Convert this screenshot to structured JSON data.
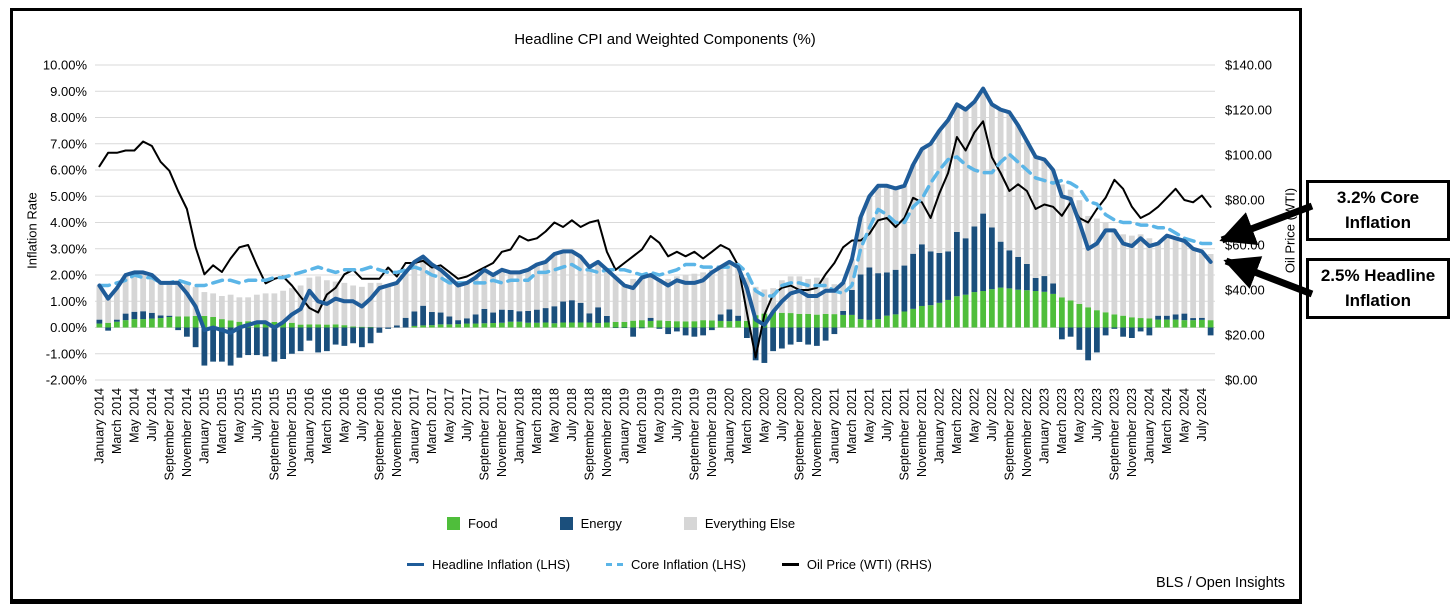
{
  "title": "Headline CPI and Weighted Components (%)",
  "left_axis": {
    "title": "Inflation Rate",
    "ticks": [
      "10.00%",
      "9.00%",
      "8.00%",
      "7.00%",
      "6.00%",
      "5.00%",
      "4.00%",
      "3.00%",
      "2.00%",
      "1.00%",
      "0.00%",
      "-1.00%",
      "-2.00%"
    ]
  },
  "right_axis": {
    "title": "Oil Price (WTI)",
    "ticks": [
      "$140.00",
      "$120.00",
      "$100.00",
      "$80.00",
      "$60.00",
      "$40.00",
      "$20.00",
      "$0.00"
    ]
  },
  "legend": {
    "bars": [
      {
        "label": "Food",
        "color": "#4fbe3b"
      },
      {
        "label": "Energy",
        "color": "#1b4f7c"
      },
      {
        "label": "Everything Else",
        "color": "#d6d6d6"
      }
    ],
    "lines": [
      {
        "label": "Headline Inflation (LHS)",
        "color": "#1f5c99",
        "dashed": false
      },
      {
        "label": "Core Inflation (LHS)",
        "color": "#5bb5e7",
        "dashed": true
      },
      {
        "label": "Oil Price (WTI) (RHS)",
        "color": "#000000",
        "dashed": false
      }
    ]
  },
  "callouts": [
    {
      "text": "3.2% Core Inflation"
    },
    {
      "text": "2.5% Headline Inflation"
    }
  ],
  "attribution": "BLS / Open Insights",
  "chart_data": {
    "type": "combo: monthly stacked contribution bars + lines (dual axis)",
    "x_start": "January 2014",
    "x_end": "August 2024",
    "left_ylim": [
      -2,
      10
    ],
    "right_ylim": [
      0,
      140
    ],
    "grid": true,
    "x_tick_labels": [
      "January 2014",
      "March 2014",
      "May 2014",
      "July 2014",
      "September 2014",
      "November 2014",
      "January 2015",
      "March 2015",
      "May 2015",
      "July 2015",
      "September 2015",
      "November 2015",
      "January 2016",
      "March 2016",
      "May 2016",
      "July 2016",
      "September 2016",
      "November 2016",
      "January 2017",
      "March 2017",
      "May 2017",
      "July 2017",
      "September 2017",
      "November 2017",
      "January 2018",
      "March 2018",
      "May 2018",
      "July 2018",
      "September 2018",
      "November 2018",
      "January 2019",
      "March 2019",
      "May 2019",
      "July 2019",
      "September 2019",
      "November 2019",
      "January 2020",
      "March 2020",
      "May 2020",
      "July 2020",
      "September 2020",
      "November 2020",
      "January 2021",
      "March 2021",
      "May 2021",
      "July 2021",
      "September 2021",
      "November 2021",
      "January 2022",
      "March 2022",
      "May 2022",
      "July 2022",
      "September 2022",
      "November 2022",
      "January 2023",
      "March 2023",
      "May 2023",
      "July 2023",
      "September 2023",
      "November 2023",
      "January 2024",
      "March 2024",
      "May 2024",
      "July 2024"
    ],
    "series": [
      {
        "name": "Food",
        "type": "bar",
        "axis": "left",
        "color": "#4fbe3b",
        "values": [
          0.15,
          0.18,
          0.22,
          0.28,
          0.32,
          0.32,
          0.34,
          0.36,
          0.4,
          0.42,
          0.42,
          0.44,
          0.44,
          0.4,
          0.32,
          0.27,
          0.22,
          0.24,
          0.22,
          0.21,
          0.21,
          0.21,
          0.18,
          0.11,
          0.12,
          0.12,
          0.11,
          0.12,
          0.09,
          0.04,
          0.03,
          0.02,
          0.0,
          0.0,
          0.0,
          0.0,
          0.06,
          0.08,
          0.09,
          0.12,
          0.12,
          0.13,
          0.15,
          0.15,
          0.16,
          0.17,
          0.18,
          0.22,
          0.22,
          0.18,
          0.18,
          0.19,
          0.16,
          0.19,
          0.19,
          0.19,
          0.19,
          0.17,
          0.19,
          0.21,
          0.21,
          0.26,
          0.28,
          0.25,
          0.27,
          0.25,
          0.24,
          0.23,
          0.24,
          0.28,
          0.27,
          0.25,
          0.24,
          0.25,
          0.25,
          0.47,
          0.53,
          0.59,
          0.56,
          0.55,
          0.52,
          0.52,
          0.49,
          0.52,
          0.51,
          0.48,
          0.48,
          0.32,
          0.29,
          0.32,
          0.45,
          0.5,
          0.61,
          0.71,
          0.82,
          0.85,
          0.94,
          1.05,
          1.19,
          1.25,
          1.35,
          1.39,
          1.46,
          1.52,
          1.49,
          1.44,
          1.42,
          1.39,
          1.36,
          1.28,
          1.15,
          1.03,
          0.9,
          0.77,
          0.66,
          0.58,
          0.5,
          0.45,
          0.39,
          0.36,
          0.35,
          0.3,
          0.3,
          0.3,
          0.28,
          0.28,
          0.29,
          0.28
        ]
      },
      {
        "name": "Energy",
        "type": "bar",
        "axis": "left",
        "color": "#1b4f7c",
        "values": [
          0.15,
          -0.12,
          0.08,
          0.25,
          0.28,
          0.3,
          0.22,
          0.1,
          0.05,
          -0.1,
          -0.35,
          -0.75,
          -1.45,
          -1.3,
          -1.3,
          -1.45,
          -1.15,
          -1.05,
          -1.05,
          -1.1,
          -1.3,
          -1.2,
          -1.0,
          -0.9,
          -0.5,
          -0.95,
          -0.9,
          -0.65,
          -0.7,
          -0.6,
          -0.75,
          -0.6,
          -0.2,
          -0.05,
          0.08,
          0.37,
          0.55,
          0.75,
          0.5,
          0.45,
          0.3,
          0.15,
          0.2,
          0.35,
          0.55,
          0.4,
          0.5,
          0.45,
          0.4,
          0.45,
          0.5,
          0.55,
          0.65,
          0.8,
          0.85,
          0.75,
          0.35,
          0.6,
          0.25,
          -0.02,
          -0.02,
          -0.35,
          -0.03,
          0.12,
          -0.05,
          -0.25,
          -0.15,
          -0.3,
          -0.35,
          -0.3,
          -0.1,
          0.25,
          0.45,
          0.2,
          -0.4,
          -1.25,
          -1.35,
          -0.9,
          -0.8,
          -0.65,
          -0.55,
          -0.65,
          -0.7,
          -0.5,
          -0.25,
          0.15,
          0.95,
          1.7,
          2.0,
          1.75,
          1.65,
          1.7,
          1.75,
          2.1,
          2.35,
          2.05,
          1.9,
          1.85,
          2.45,
          2.15,
          2.5,
          2.95,
          2.35,
          1.75,
          1.45,
          1.25,
          1.0,
          0.5,
          0.6,
          0.4,
          -0.45,
          -0.35,
          -0.85,
          -1.25,
          -0.95,
          -0.3,
          -0.05,
          -0.35,
          -0.4,
          -0.15,
          -0.3,
          0.15,
          0.15,
          0.2,
          0.25,
          0.08,
          0.08,
          -0.3
        ]
      },
      {
        "name": "Everything Else",
        "type": "bar",
        "axis": "left",
        "color": "#d6d6d6",
        "values": [
          1.3,
          1.04,
          1.2,
          1.47,
          1.5,
          1.48,
          1.44,
          1.24,
          1.25,
          1.38,
          1.23,
          1.11,
          0.91,
          0.9,
          0.88,
          0.98,
          0.93,
          0.91,
          1.03,
          1.09,
          1.09,
          1.19,
          1.32,
          1.49,
          1.78,
          1.83,
          1.69,
          1.63,
          1.61,
          1.56,
          1.52,
          1.68,
          1.7,
          1.65,
          1.62,
          1.73,
          1.89,
          1.87,
          1.81,
          1.63,
          1.48,
          1.32,
          1.35,
          1.4,
          1.49,
          1.43,
          1.52,
          1.43,
          1.48,
          1.57,
          1.72,
          1.76,
          1.99,
          1.91,
          1.86,
          1.76,
          1.76,
          1.73,
          1.76,
          1.71,
          1.41,
          1.59,
          1.65,
          1.63,
          1.58,
          1.6,
          1.71,
          1.77,
          1.81,
          1.82,
          1.93,
          1.8,
          1.81,
          1.85,
          1.65,
          1.08,
          0.92,
          0.91,
          1.24,
          1.4,
          1.43,
          1.33,
          1.41,
          1.38,
          1.14,
          1.07,
          1.17,
          2.18,
          2.71,
          3.33,
          3.3,
          3.1,
          3.04,
          3.39,
          3.63,
          4.1,
          4.66,
          5.0,
          4.86,
          4.9,
          4.75,
          4.76,
          4.69,
          5.03,
          5.26,
          5.01,
          4.68,
          4.61,
          4.44,
          4.32,
          4.3,
          4.22,
          3.95,
          3.48,
          3.49,
          3.42,
          3.25,
          3.1,
          3.11,
          3.19,
          3.05,
          2.75,
          3.05,
          2.9,
          2.77,
          2.64,
          2.53,
          2.52
        ]
      },
      {
        "name": "Headline Inflation (LHS)",
        "type": "line",
        "axis": "left",
        "color": "#1f5c99",
        "dashed": false,
        "values": [
          1.6,
          1.1,
          1.5,
          2.0,
          2.1,
          2.1,
          2.0,
          1.7,
          1.7,
          1.7,
          1.3,
          0.8,
          -0.1,
          0.0,
          -0.1,
          -0.2,
          0.0,
          0.1,
          0.2,
          0.2,
          0.0,
          0.2,
          0.5,
          0.7,
          1.4,
          1.0,
          0.9,
          1.1,
          1.0,
          1.0,
          0.8,
          1.1,
          1.5,
          1.6,
          1.7,
          2.1,
          2.5,
          2.7,
          2.4,
          2.2,
          1.9,
          1.6,
          1.7,
          1.9,
          2.2,
          2.0,
          2.2,
          2.1,
          2.1,
          2.2,
          2.4,
          2.5,
          2.8,
          2.9,
          2.9,
          2.7,
          2.3,
          2.5,
          2.2,
          1.9,
          1.6,
          1.5,
          1.9,
          2.0,
          1.8,
          1.6,
          1.8,
          1.7,
          1.7,
          1.8,
          2.1,
          2.3,
          2.5,
          2.3,
          1.5,
          0.3,
          0.1,
          0.6,
          1.0,
          1.3,
          1.4,
          1.2,
          1.2,
          1.4,
          1.4,
          1.7,
          2.6,
          4.2,
          5.0,
          5.4,
          5.4,
          5.3,
          5.4,
          6.2,
          6.8,
          7.0,
          7.5,
          7.9,
          8.5,
          8.3,
          8.6,
          9.1,
          8.5,
          8.3,
          8.2,
          7.7,
          7.1,
          6.5,
          6.4,
          6.0,
          5.0,
          4.9,
          4.0,
          3.0,
          3.2,
          3.7,
          3.7,
          3.2,
          3.1,
          3.4,
          3.1,
          3.2,
          3.5,
          3.4,
          3.3,
          3.0,
          2.9,
          2.5
        ]
      },
      {
        "name": "Core Inflation (LHS)",
        "type": "line",
        "axis": "left",
        "color": "#5bb5e7",
        "dashed": true,
        "values": [
          1.6,
          1.6,
          1.7,
          1.8,
          2.0,
          1.9,
          1.9,
          1.7,
          1.7,
          1.8,
          1.7,
          1.6,
          1.6,
          1.7,
          1.8,
          1.8,
          1.7,
          1.8,
          1.8,
          1.8,
          1.9,
          1.9,
          2.0,
          2.1,
          2.2,
          2.3,
          2.2,
          2.1,
          2.2,
          2.2,
          2.2,
          2.3,
          2.2,
          2.1,
          2.1,
          2.2,
          2.3,
          2.2,
          2.0,
          1.9,
          1.7,
          1.7,
          1.7,
          1.7,
          1.7,
          1.8,
          1.7,
          1.8,
          1.8,
          1.8,
          2.1,
          2.1,
          2.2,
          2.3,
          2.4,
          2.2,
          2.2,
          2.1,
          2.2,
          2.2,
          2.2,
          2.1,
          2.0,
          2.1,
          2.0,
          2.1,
          2.2,
          2.4,
          2.4,
          2.3,
          2.3,
          2.3,
          2.3,
          2.4,
          2.1,
          1.4,
          1.2,
          1.2,
          1.6,
          1.7,
          1.7,
          1.6,
          1.6,
          1.6,
          1.4,
          1.3,
          1.6,
          3.0,
          3.8,
          4.5,
          4.3,
          4.0,
          4.0,
          4.6,
          4.9,
          5.5,
          6.0,
          6.4,
          6.5,
          6.2,
          6.0,
          5.9,
          5.9,
          6.3,
          6.6,
          6.3,
          6.0,
          5.7,
          5.6,
          5.5,
          5.6,
          5.5,
          5.3,
          4.8,
          4.7,
          4.3,
          4.1,
          4.0,
          4.0,
          3.9,
          3.9,
          3.8,
          3.8,
          3.6,
          3.4,
          3.3,
          3.2,
          3.2
        ]
      },
      {
        "name": "Oil Price (WTI) (RHS)",
        "type": "line",
        "axis": "right",
        "color": "#000000",
        "dashed": false,
        "values": [
          95,
          101,
          101,
          102,
          102,
          106,
          104,
          97,
          93,
          84,
          76,
          59,
          47,
          51,
          48,
          54,
          59,
          60,
          51,
          43,
          45,
          46,
          42,
          37,
          32,
          30,
          38,
          41,
          47,
          49,
          45,
          45,
          45,
          50,
          46,
          52,
          52,
          53,
          50,
          51,
          48,
          45,
          46,
          48,
          50,
          52,
          57,
          58,
          64,
          62,
          63,
          66,
          70,
          68,
          71,
          68,
          70,
          71,
          57,
          49,
          52,
          55,
          58,
          64,
          61,
          55,
          57,
          55,
          57,
          54,
          57,
          60,
          58,
          51,
          30,
          10,
          29,
          38,
          41,
          42,
          40,
          40,
          41,
          47,
          52,
          59,
          62,
          62,
          65,
          71,
          72,
          68,
          72,
          81,
          79,
          72,
          83,
          92,
          108,
          102,
          110,
          115,
          99,
          92,
          84,
          87,
          84,
          76,
          78,
          77,
          73,
          79,
          72,
          70,
          76,
          81,
          89,
          85,
          77,
          72,
          74,
          77,
          81,
          85,
          80,
          79,
          82,
          77
        ]
      }
    ]
  }
}
